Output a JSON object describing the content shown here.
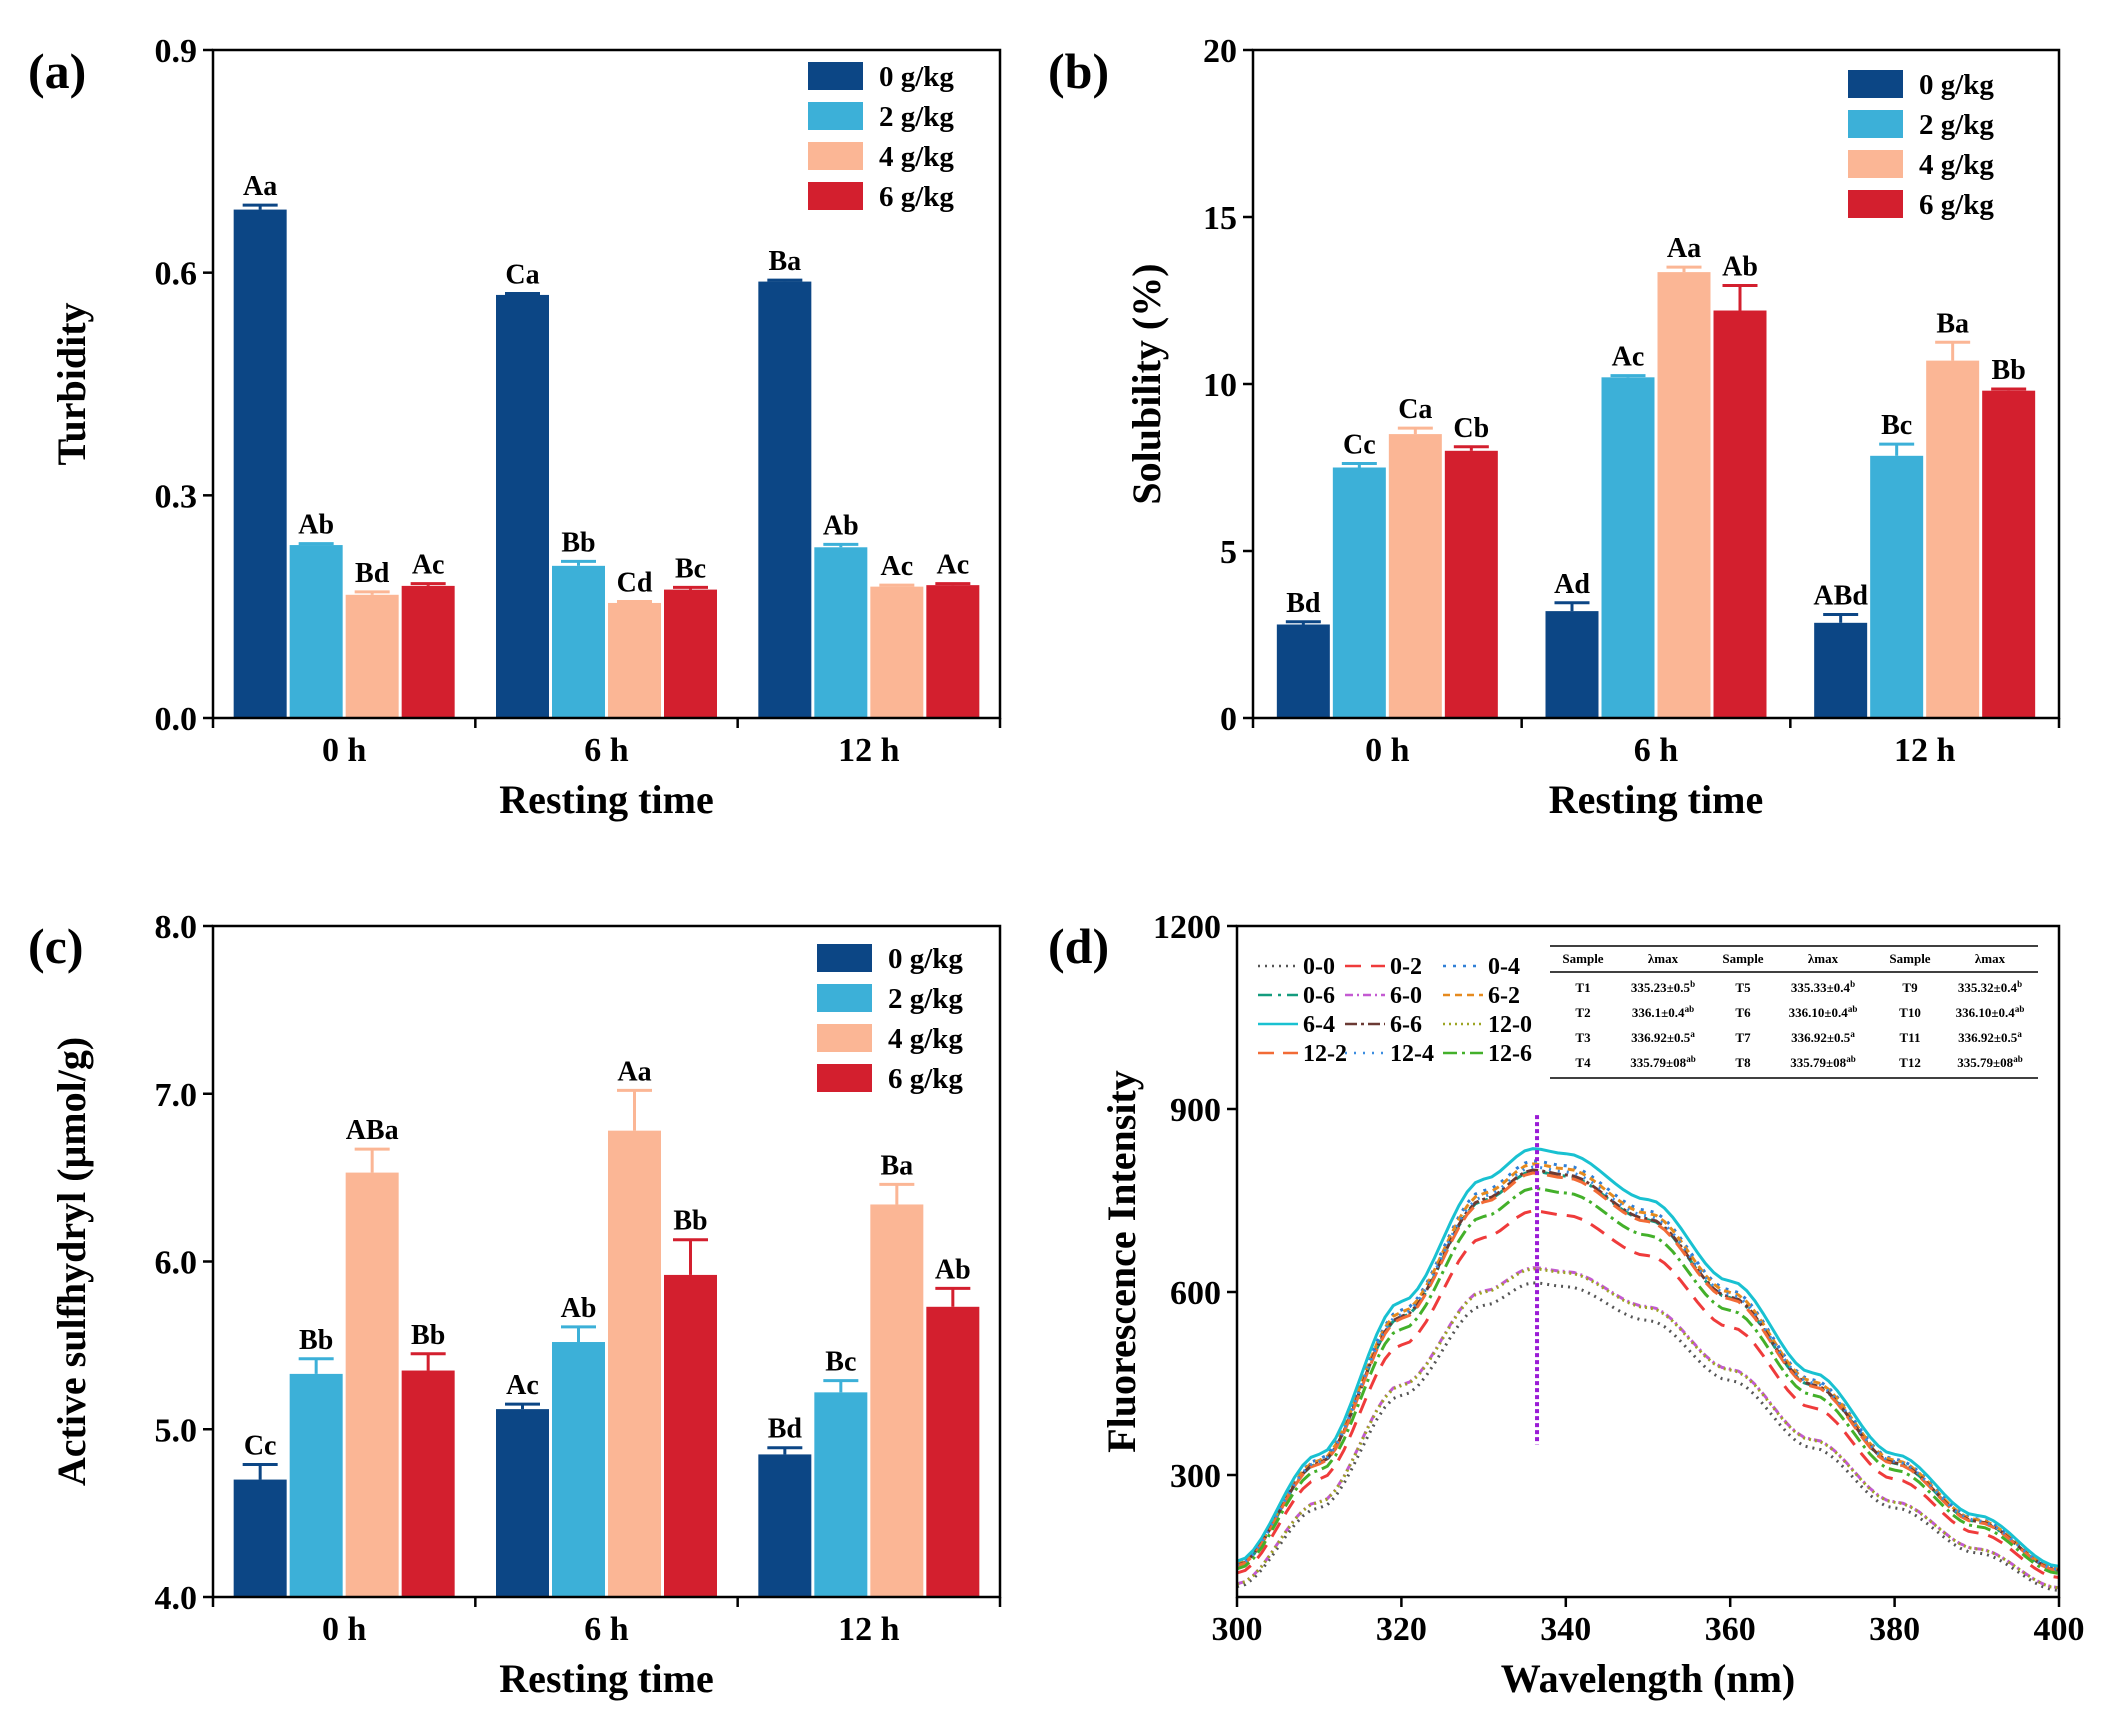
{
  "colors": {
    "0 g/kg": "#0c4685",
    "2 g/kg": "#3cb0d8",
    "4 g/kg": "#fbb695",
    "6 g/kg": "#d31f2e",
    "vline": "#9a1bd6"
  },
  "chart_data": [
    {
      "id": "a",
      "panel_label": "(a)",
      "type": "bar",
      "categories": [
        "0 h",
        "6 h",
        "12 h"
      ],
      "series": [
        {
          "name": "0 g/kg",
          "values": [
            0.685,
            0.57,
            0.588
          ],
          "errors": [
            0.006,
            0.002,
            0.002
          ],
          "letters": [
            "Aa",
            "Ca",
            "Ba"
          ]
        },
        {
          "name": "2 g/kg",
          "values": [
            0.233,
            0.205,
            0.23
          ],
          "errors": [
            0.002,
            0.006,
            0.004
          ],
          "letters": [
            "Ab",
            "Bb",
            "Ab"
          ]
        },
        {
          "name": "4 g/kg",
          "values": [
            0.166,
            0.155,
            0.177
          ],
          "errors": [
            0.004,
            0.002,
            0.002
          ],
          "letters": [
            "Bd",
            "Cd",
            "Ac"
          ]
        },
        {
          "name": "6 g/kg",
          "values": [
            0.178,
            0.173,
            0.179
          ],
          "errors": [
            0.003,
            0.003,
            0.002
          ],
          "letters": [
            "Ac",
            "Bc",
            "Ac"
          ]
        }
      ],
      "xlabel": "Resting time",
      "ylabel": "Turbidity",
      "ylim": [
        0.0,
        0.9
      ],
      "yticks": [
        0.0,
        0.3,
        0.6,
        0.9
      ],
      "ytick_labels": [
        "0.0",
        "0.3",
        "0.6",
        "0.9"
      ],
      "legend": "top-right",
      "legend_labels": [
        "0 g/kg",
        "2 g/kg",
        "4 g/kg",
        "6 g/kg"
      ]
    },
    {
      "id": "b",
      "panel_label": "(b)",
      "type": "bar",
      "categories": [
        "0 h",
        "6 h",
        "12 h"
      ],
      "series": [
        {
          "name": "0 g/kg",
          "values": [
            2.8,
            3.2,
            2.85
          ],
          "errors": [
            0.08,
            0.25,
            0.25
          ],
          "letters": [
            "Bd",
            "Ad",
            "ABd"
          ]
        },
        {
          "name": "2 g/kg",
          "values": [
            7.5,
            10.2,
            7.85
          ],
          "errors": [
            0.12,
            0.05,
            0.35
          ],
          "letters": [
            "Cc",
            "Ac",
            "Bc"
          ]
        },
        {
          "name": "4 g/kg",
          "values": [
            8.5,
            13.35,
            10.7
          ],
          "errors": [
            0.18,
            0.15,
            0.55
          ],
          "letters": [
            "Ca",
            "Aa",
            "Ba"
          ]
        },
        {
          "name": "6 g/kg",
          "values": [
            8.0,
            12.2,
            9.8
          ],
          "errors": [
            0.12,
            0.75,
            0.05
          ],
          "letters": [
            "Cb",
            "Ab",
            "Bb"
          ]
        }
      ],
      "xlabel": "Resting time",
      "ylabel": "Solubility (%)",
      "ylim": [
        0,
        20
      ],
      "yticks": [
        0,
        5,
        10,
        15,
        20
      ],
      "ytick_labels": [
        "0",
        "5",
        "10",
        "15",
        "20"
      ],
      "legend": "top-right",
      "legend_labels": [
        "0 g/kg",
        "2 g/kg",
        "4 g/kg",
        "6 g/kg"
      ]
    },
    {
      "id": "c",
      "panel_label": "(c)",
      "type": "bar",
      "categories": [
        "0 h",
        "6 h",
        "12 h"
      ],
      "series": [
        {
          "name": "0 g/kg",
          "values": [
            4.7,
            5.12,
            4.85
          ],
          "errors": [
            0.09,
            0.03,
            0.04
          ],
          "letters": [
            "Cc",
            "Ac",
            "Bd"
          ]
        },
        {
          "name": "2 g/kg",
          "values": [
            5.33,
            5.52,
            5.22
          ],
          "errors": [
            0.09,
            0.09,
            0.07
          ],
          "letters": [
            "Bb",
            "Ab",
            "Bc"
          ]
        },
        {
          "name": "4 g/kg",
          "values": [
            6.53,
            6.78,
            6.34
          ],
          "errors": [
            0.14,
            0.24,
            0.12
          ],
          "letters": [
            "ABa",
            "Aa",
            "Ba"
          ]
        },
        {
          "name": "6 g/kg",
          "values": [
            5.35,
            5.92,
            5.73
          ],
          "errors": [
            0.1,
            0.21,
            0.11
          ],
          "letters": [
            "Bb",
            "Bb",
            "Ab"
          ]
        }
      ],
      "xlabel": "Resting time",
      "ylabel": "Active sulfhydryl (μmol/g)",
      "ylim": [
        4.0,
        8.0
      ],
      "yticks": [
        4.0,
        5.0,
        6.0,
        7.0,
        8.0
      ],
      "ytick_labels": [
        "4.0",
        "5.0",
        "6.0",
        "7.0",
        "8.0"
      ],
      "legend": "top-right",
      "legend_labels": [
        "0 g/kg",
        "2 g/kg",
        "4 g/kg",
        "6 g/kg"
      ]
    },
    {
      "id": "d",
      "panel_label": "(d)",
      "type": "line",
      "xlabel": "Wavelength (nm)",
      "ylabel": "Fluorescence Intensity",
      "xlim": [
        300,
        400
      ],
      "ylim": [
        100,
        1200
      ],
      "xticks": [
        300,
        320,
        340,
        360,
        380,
        400
      ],
      "xtick_labels": [
        "300",
        "320",
        "340",
        "360",
        "380",
        "400"
      ],
      "yticks": [
        300,
        600,
        900,
        1200
      ],
      "ytick_labels": [
        "300",
        "600",
        "900",
        "1200"
      ],
      "curve_model": {
        "x": [
          300,
          310,
          320,
          330,
          336,
          340,
          350,
          360,
          370,
          380,
          390,
          400
        ],
        "shape": [
          0.19,
          0.4,
          0.7,
          0.94,
          1.0,
          0.99,
          0.9,
          0.74,
          0.56,
          0.4,
          0.28,
          0.18
        ]
      },
      "series": [
        {
          "name": "0-0",
          "peak": 615,
          "color": "#555555",
          "dash": "2 5"
        },
        {
          "name": "0-2",
          "peak": 733,
          "color": "#ef3b3b",
          "dash": "16 10"
        },
        {
          "name": "0-4",
          "peak": 815,
          "color": "#2f7fd6",
          "dash": "3 7"
        },
        {
          "name": "0-6",
          "peak": 798,
          "color": "#149c7e",
          "dash": "14 6 3 6"
        },
        {
          "name": "6-0",
          "peak": 640,
          "color": "#c45ad2",
          "dash": "8 4 2 4"
        },
        {
          "name": "6-2",
          "peak": 810,
          "color": "#e68a1e",
          "dash": "7 5"
        },
        {
          "name": "6-4",
          "peak": 835,
          "color": "#19c1d1",
          "dash": ""
        },
        {
          "name": "6-6",
          "peak": 800,
          "color": "#6b3a34",
          "dash": "12 4 3 4"
        },
        {
          "name": "12-0",
          "peak": 638,
          "color": "#9da522",
          "dash": "2 4"
        },
        {
          "name": "12-2",
          "peak": 795,
          "color": "#f26b36",
          "dash": "16 9"
        },
        {
          "name": "12-4",
          "peak": 805,
          "color": "#3c8de0",
          "dash": "2 7"
        },
        {
          "name": "12-6",
          "peak": 770,
          "color": "#43b02a",
          "dash": "14 5 3 5"
        }
      ],
      "vline": {
        "x": 336.5,
        "y_from": 350,
        "y_to": 890
      },
      "legend": "top-left",
      "table": {
        "headers": [
          "Sample",
          "λmax",
          "Sample",
          "λmax",
          "Sample",
          "λmax"
        ],
        "rows": [
          [
            {
              "text": "T1"
            },
            {
              "text": "335.23±0.5",
              "sup": "b"
            },
            {
              "text": "T5"
            },
            {
              "text": "335.33±0.4",
              "sup": "b"
            },
            {
              "text": "T9"
            },
            {
              "text": "335.32±0.4",
              "sup": "b"
            }
          ],
          [
            {
              "text": "T2"
            },
            {
              "text": "336.1±0.4",
              "sup": "ab"
            },
            {
              "text": "T6"
            },
            {
              "text": "336.10±0.4",
              "sup": "ab"
            },
            {
              "text": "T10"
            },
            {
              "text": "336.10±0.4",
              "sup": "ab"
            }
          ],
          [
            {
              "text": "T3"
            },
            {
              "text": "336.92±0.5",
              "sup": "a"
            },
            {
              "text": "T7"
            },
            {
              "text": "336.92±0.5",
              "sup": "a"
            },
            {
              "text": "T11"
            },
            {
              "text": "336.92±0.5",
              "sup": "a"
            }
          ],
          [
            {
              "text": "T4"
            },
            {
              "text": "335.79±08",
              "sup": "ab"
            },
            {
              "text": "T8"
            },
            {
              "text": "335.79±08",
              "sup": "ab"
            },
            {
              "text": "T12"
            },
            {
              "text": "335.79±08",
              "sup": "ab"
            }
          ]
        ]
      }
    }
  ]
}
